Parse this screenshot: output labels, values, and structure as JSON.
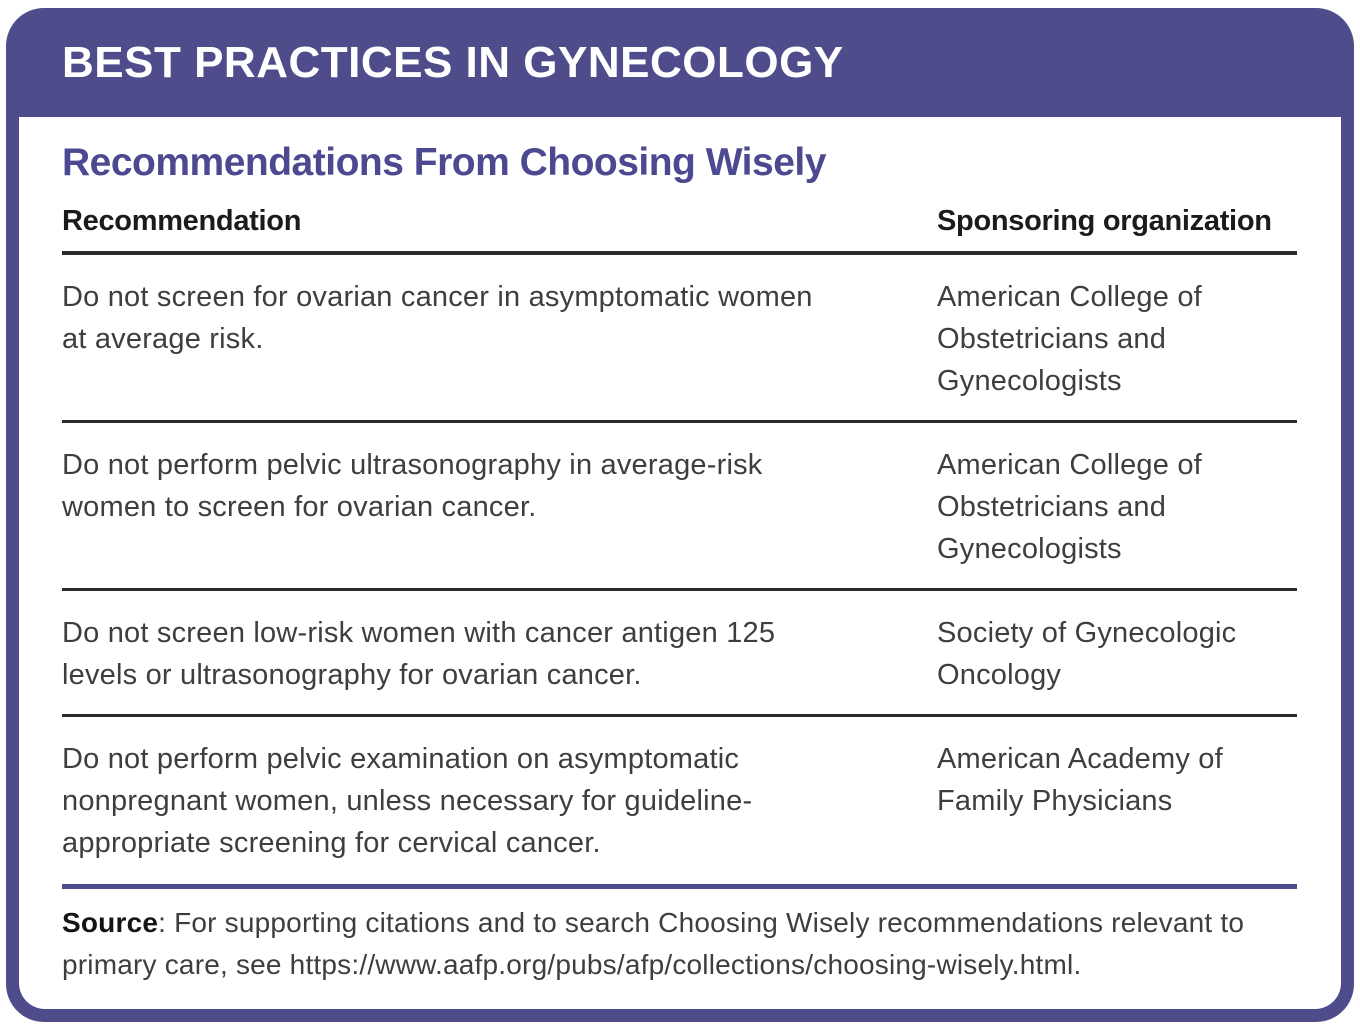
{
  "banner": {
    "title": "BEST PRACTICES IN GYNECOLOGY"
  },
  "section": {
    "title": "Recommendations From Choosing Wisely"
  },
  "table": {
    "columns": [
      "Recommendation",
      "Sponsoring organization"
    ],
    "rows": [
      {
        "recommendation": "Do not screen for ovarian cancer in asymptomatic women at average risk.",
        "organization": "American College of Obstetricians and Gynecologists"
      },
      {
        "recommendation": "Do not perform pelvic ultrasonography in average-risk women to screen for ovarian cancer.",
        "organization": "American College of Obstetricians and Gynecologists"
      },
      {
        "recommendation": "Do not screen low-risk women with cancer antigen 125 levels or ultrasonography for ovarian cancer.",
        "organization": "Society of Gynecologic Oncology"
      },
      {
        "recommendation": "Do not perform pelvic examination on asymptomatic nonpregnant women, unless necessary for guideline-appropriate screening for cervical cancer.",
        "organization": "American Academy of Family Physicians"
      }
    ]
  },
  "source": {
    "label": "Source",
    "text": ": For supporting citations and to search Choosing Wisely recommendations relevant to primary care, see https://www.aafp.org/pubs/afp/collections/choosing-wisely.html."
  },
  "colors": {
    "purple": "#4f4c8b",
    "title-purple": "#4c4990",
    "text": "#3e3e3e",
    "heading": "#1b1b1b",
    "rule": "#2b2b2b"
  }
}
